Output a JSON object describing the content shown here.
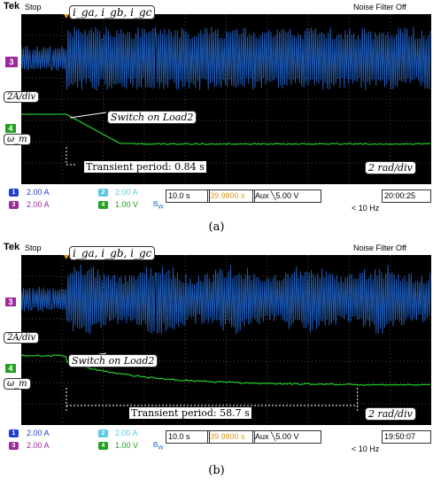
{
  "panels": [
    {
      "id": "a",
      "tek": "Tek",
      "state": "Stop",
      "noise": "Noise Filter Off",
      "ch3_marker": "3",
      "ch4_marker": "4",
      "currents_label": "i_ga, i_gb, i_gc",
      "scale_i": "2A/div",
      "omega": "ω_m",
      "switch_label": "Switch on Load2",
      "transient": "Transient period: 0.84 s",
      "speed_scale": "2 rad/div",
      "ch1": "2.00 A",
      "ch2": "2.00 A",
      "ch3": "2.00 A",
      "ch4": "1.00 V",
      "time": "10.0 s",
      "pos": "39.9800 s",
      "trig": "Aux ╲5.00 V",
      "freq": "< 10 Hz",
      "clock": "20:00:25",
      "caption": "(a)"
    },
    {
      "id": "b",
      "tek": "Tek",
      "state": "Stop",
      "noise": "Noise Filter Off",
      "ch3_marker": "3",
      "ch4_marker": "4",
      "currents_label": "i_ga, i_gb, i_gc",
      "scale_i": "2A/div",
      "omega": "ω_m",
      "switch_label": "Switch on Load2",
      "transient": "Transient period: 58.7 s",
      "speed_scale": "2 rad/div",
      "ch1": "2.00 A",
      "ch2": "2.00 A",
      "ch3": "2.00 A",
      "ch4": "1.00 V",
      "time": "10.0 s",
      "pos": "39.9800 s",
      "trig": "Aux ╲5.00 V",
      "freq": "< 10 Hz",
      "clock": "19:50:07",
      "caption": "(b)"
    }
  ],
  "colors": {
    "current": "#1f5fbf",
    "speed": "#22c02a",
    "ch3chip": "#9b2b9b",
    "ch1chip": "#1f3fd0",
    "ch2chip": "#59c9e8",
    "ch4chip": "#21a021",
    "trig": "#e09a20"
  },
  "waveform": {
    "switch_fraction": 0.11,
    "transient_a_fraction": 0.17,
    "transient_b_fraction": 0.71
  }
}
